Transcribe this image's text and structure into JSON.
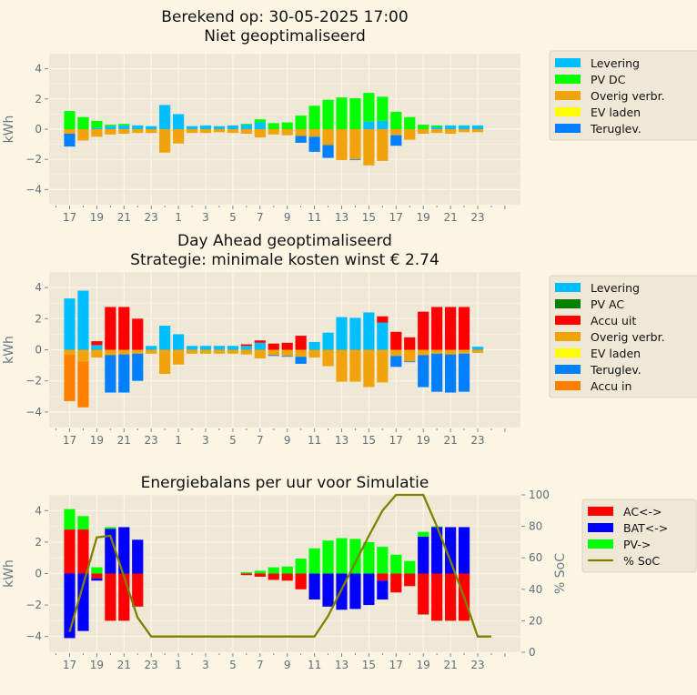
{
  "x_labels": [
    "17",
    "19",
    "21",
    "23",
    "1",
    "3",
    "5",
    "7",
    "9",
    "11",
    "13",
    "15",
    "17",
    "19",
    "21",
    "23"
  ],
  "chart_data": [
    {
      "type": "bar",
      "title": "Berekend op: 30-05-2025 17:00\nNiet geoptimaliseerd",
      "title_lines": [
        "Berekend op: 30-05-2025 17:00",
        "Niet geoptimaliseerd"
      ],
      "xlabel": "",
      "ylabel": "kWh",
      "ylim": [
        -5,
        5
      ],
      "yticks": [
        -4,
        -2,
        0,
        2,
        4
      ],
      "hours": [
        17,
        18,
        19,
        20,
        21,
        22,
        23,
        0,
        1,
        2,
        3,
        4,
        5,
        6,
        7,
        8,
        9,
        10,
        11,
        12,
        13,
        14,
        15,
        16,
        17,
        18,
        19,
        20,
        21,
        22,
        23
      ],
      "legend_position": "outside-right",
      "series": [
        {
          "name": "Levering",
          "color": "#00bfff",
          "stack": "pos",
          "values": [
            0,
            0,
            0.1,
            0.2,
            0.25,
            0.25,
            0.2,
            1.6,
            1.0,
            0.2,
            0.25,
            0.2,
            0.25,
            0.3,
            0.45,
            0,
            0,
            0,
            0,
            0,
            0,
            0,
            0.5,
            0.55,
            0,
            0,
            0,
            0.15,
            0.25,
            0.25,
            0.25
          ]
        },
        {
          "name": "PV DC",
          "color": "#00ff00",
          "stack": "pos",
          "values": [
            1.2,
            0.8,
            0.45,
            0.1,
            0.1,
            0,
            0,
            0,
            0,
            0,
            0,
            0,
            0,
            0.05,
            0.2,
            0.4,
            0.45,
            0.9,
            1.55,
            1.95,
            2.1,
            2.05,
            1.9,
            1.6,
            1.15,
            0.8,
            0.3,
            0.1,
            0,
            0,
            0
          ]
        },
        {
          "name": "Overig verbr.",
          "color": "#f0a30a",
          "stack": "neg",
          "values": [
            0.3,
            0.75,
            0.5,
            0.35,
            0.3,
            0.25,
            0.25,
            1.55,
            0.95,
            0.25,
            0.25,
            0.2,
            0.25,
            0.3,
            0.55,
            0.35,
            0.4,
            0.45,
            0.5,
            1.05,
            2.05,
            2.0,
            2.4,
            2.1,
            0.4,
            0.7,
            0.3,
            0.25,
            0.3,
            0.2,
            0.2
          ]
        },
        {
          "name": "EV laden",
          "color": "#ffff00",
          "stack": "neg",
          "values": [
            0,
            0,
            0,
            0,
            0,
            0,
            0,
            0,
            0,
            0,
            0,
            0,
            0,
            0,
            0,
            0,
            0,
            0,
            0,
            0,
            0,
            0,
            0,
            0,
            0,
            0,
            0,
            0,
            0,
            0,
            0
          ]
        },
        {
          "name": "Teruglev.",
          "color": "#0080ff",
          "stack": "neg",
          "values": [
            0.85,
            0,
            0,
            0,
            0,
            0,
            0,
            0,
            0,
            0,
            0,
            0,
            0,
            0,
            0,
            0,
            0,
            0.45,
            1.0,
            0.85,
            0,
            0.05,
            0,
            0,
            0.7,
            0,
            0,
            0,
            0,
            0,
            0
          ]
        }
      ]
    },
    {
      "type": "bar",
      "title": "Day Ahead geoptimaliseerd\nStrategie: minimale kosten winst € 2.74",
      "title_lines": [
        "Day Ahead geoptimaliseerd",
        "Strategie: minimale kosten winst € 2.74"
      ],
      "xlabel": "",
      "ylabel": "kWh",
      "ylim": [
        -5,
        5
      ],
      "yticks": [
        -4,
        -2,
        0,
        2,
        4
      ],
      "hours": [
        17,
        18,
        19,
        20,
        21,
        22,
        23,
        0,
        1,
        2,
        3,
        4,
        5,
        6,
        7,
        8,
        9,
        10,
        11,
        12,
        13,
        14,
        15,
        16,
        17,
        18,
        19,
        20,
        21,
        22,
        23
      ],
      "legend_position": "outside-right",
      "series": [
        {
          "name": "Levering",
          "color": "#00bfff",
          "stack": "pos",
          "values": [
            3.3,
            3.8,
            0.3,
            0,
            0,
            0,
            0.25,
            1.55,
            1.0,
            0.25,
            0.25,
            0.25,
            0.25,
            0.25,
            0.45,
            0,
            0,
            0,
            0.5,
            1.1,
            2.1,
            2.05,
            2.4,
            1.75,
            0,
            0,
            0,
            0,
            0,
            0,
            0.2
          ]
        },
        {
          "name": "PV AC",
          "color": "#008000",
          "stack": "pos",
          "values": [
            0,
            0,
            0,
            0,
            0,
            0,
            0,
            0,
            0,
            0,
            0,
            0,
            0,
            0,
            0,
            0,
            0,
            0,
            0,
            0,
            0,
            0,
            0,
            0,
            0,
            0,
            0,
            0,
            0,
            0,
            0
          ]
        },
        {
          "name": "Accu uit",
          "color": "#ff0000",
          "stack": "pos",
          "values": [
            0,
            0,
            0.25,
            2.75,
            2.75,
            2.0,
            0,
            0,
            0,
            0,
            0,
            0,
            0,
            0.1,
            0.15,
            0.4,
            0.45,
            0.9,
            0,
            0,
            0,
            0,
            0,
            0.4,
            1.15,
            0.8,
            2.45,
            2.75,
            2.75,
            2.75,
            0
          ]
        },
        {
          "name": "Overig verbr.",
          "color": "#f0a30a",
          "stack": "neg",
          "values": [
            0.3,
            0.75,
            0.5,
            0.35,
            0.3,
            0.25,
            0.25,
            1.55,
            0.95,
            0.25,
            0.25,
            0.25,
            0.25,
            0.3,
            0.55,
            0.35,
            0.4,
            0.45,
            0.5,
            1.05,
            2.05,
            2.05,
            2.4,
            2.1,
            0.4,
            0.75,
            0.35,
            0.25,
            0.3,
            0.25,
            0.2
          ]
        },
        {
          "name": "EV laden",
          "color": "#ffff00",
          "stack": "neg",
          "values": [
            0,
            0,
            0,
            0,
            0,
            0,
            0,
            0,
            0,
            0,
            0,
            0,
            0,
            0,
            0,
            0,
            0,
            0,
            0,
            0,
            0,
            0,
            0,
            0,
            0,
            0,
            0,
            0,
            0,
            0,
            0
          ]
        },
        {
          "name": "Teruglev.",
          "color": "#0080ff",
          "stack": "neg",
          "values": [
            0,
            0,
            0,
            2.4,
            2.45,
            1.75,
            0,
            0,
            0,
            0,
            0,
            0,
            0,
            0,
            0,
            0.05,
            0.05,
            0.45,
            0,
            0,
            0,
            0,
            0,
            0,
            0.7,
            0.05,
            2.05,
            2.45,
            2.45,
            2.45,
            0
          ]
        },
        {
          "name": "Accu in",
          "color": "#ff8000",
          "stack": "neg",
          "values": [
            3.0,
            2.95,
            0,
            0,
            0,
            0,
            0,
            0,
            0,
            0,
            0,
            0,
            0,
            0,
            0,
            0,
            0,
            0,
            0,
            0,
            0,
            0,
            0,
            0,
            0,
            0,
            0,
            0,
            0,
            0,
            0
          ]
        }
      ]
    },
    {
      "type": "bar",
      "title": "Energiebalans per uur voor Simulatie",
      "title_lines": [
        "Energiebalans per uur voor Simulatie"
      ],
      "xlabel": "",
      "ylabel": "kWh",
      "y2label": "% SoC",
      "ylim": [
        -5,
        5
      ],
      "y2lim": [
        0,
        100
      ],
      "yticks": [
        -4,
        -2,
        0,
        2,
        4
      ],
      "y2ticks": [
        0,
        20,
        40,
        60,
        80,
        100
      ],
      "hours": [
        17,
        18,
        19,
        20,
        21,
        22,
        23,
        0,
        1,
        2,
        3,
        4,
        5,
        6,
        7,
        8,
        9,
        10,
        11,
        12,
        13,
        14,
        15,
        16,
        17,
        18,
        19,
        20,
        21,
        22,
        23
      ],
      "legend_position": "outside-right",
      "bar_segments": [
        [
          {
            "s": "BAT",
            "v": -4.1
          },
          {
            "s": "AC",
            "v": 2.8
          },
          {
            "s": "PV",
            "v": 1.3
          }
        ],
        [
          {
            "s": "BAT",
            "v": -3.65
          },
          {
            "s": "AC",
            "v": 2.8
          },
          {
            "s": "PV",
            "v": 0.85
          }
        ],
        [
          {
            "s": "AC",
            "v": -0.3
          },
          {
            "s": "BAT",
            "v": -0.15
          },
          {
            "s": "PV",
            "v": 0.4
          }
        ],
        [
          {
            "s": "AC",
            "v": -3.0
          },
          {
            "s": "BAT",
            "v": 2.85
          },
          {
            "s": "PV",
            "v": 0.1
          }
        ],
        [
          {
            "s": "AC",
            "v": -3.0
          },
          {
            "s": "BAT",
            "v": 2.95
          }
        ],
        [
          {
            "s": "AC",
            "v": -2.1
          },
          {
            "s": "BAT",
            "v": 2.15
          }
        ],
        [],
        [],
        [],
        [],
        [],
        [],
        [],
        [
          {
            "s": "AC",
            "v": -0.1
          },
          {
            "s": "PV",
            "v": 0.08
          }
        ],
        [
          {
            "s": "AC",
            "v": -0.2
          },
          {
            "s": "PV",
            "v": 0.18
          }
        ],
        [
          {
            "s": "AC",
            "v": -0.4
          },
          {
            "s": "PV",
            "v": 0.4
          }
        ],
        [
          {
            "s": "AC",
            "v": -0.45
          },
          {
            "s": "PV",
            "v": 0.45
          }
        ],
        [
          {
            "s": "AC",
            "v": -1.0
          },
          {
            "s": "PV",
            "v": 0.95
          }
        ],
        [
          {
            "s": "BAT",
            "v": -1.65
          },
          {
            "s": "PV",
            "v": 1.6
          }
        ],
        [
          {
            "s": "BAT",
            "v": -2.1
          },
          {
            "s": "PV",
            "v": 2.1
          }
        ],
        [
          {
            "s": "BAT",
            "v": -2.3
          },
          {
            "s": "PV",
            "v": 2.25
          }
        ],
        [
          {
            "s": "BAT",
            "v": -2.25
          },
          {
            "s": "PV",
            "v": 2.2
          }
        ],
        [
          {
            "s": "BAT",
            "v": -2.0
          },
          {
            "s": "PV",
            "v": 2.0
          }
        ],
        [
          {
            "s": "AC",
            "v": -0.45
          },
          {
            "s": "BAT",
            "v": -1.2
          },
          {
            "s": "PV",
            "v": 1.7
          }
        ],
        [
          {
            "s": "AC",
            "v": -1.2
          },
          {
            "s": "PV",
            "v": 1.2
          }
        ],
        [
          {
            "s": "AC",
            "v": -0.8
          },
          {
            "s": "PV",
            "v": 0.8
          }
        ],
        [
          {
            "s": "AC",
            "v": -2.6
          },
          {
            "s": "BAT",
            "v": 2.35
          },
          {
            "s": "PV",
            "v": 0.3
          }
        ],
        [
          {
            "s": "AC",
            "v": -3.0
          },
          {
            "s": "BAT",
            "v": 2.95
          },
          {
            "s": "PV",
            "v": 0.05
          }
        ],
        [
          {
            "s": "AC",
            "v": -3.0
          },
          {
            "s": "BAT",
            "v": 2.95
          }
        ],
        [
          {
            "s": "AC",
            "v": -3.0
          },
          {
            "s": "BAT",
            "v": 2.95
          }
        ],
        []
      ],
      "series": [
        {
          "name": "AC<->",
          "key": "AC",
          "color": "#ff0000"
        },
        {
          "name": "BAT<->",
          "key": "BAT",
          "color": "#0000ff"
        },
        {
          "name": "PV->",
          "key": "PV",
          "color": "#00ff00"
        }
      ],
      "line": {
        "name": "% SoC",
        "color": "#808000",
        "x_index": [
          0,
          2,
          3,
          4,
          5,
          6,
          7,
          8,
          9,
          10,
          11,
          12,
          13,
          14,
          15,
          16,
          17,
          18,
          19,
          20,
          21,
          22,
          23,
          24,
          25,
          26,
          27,
          28,
          29,
          30,
          31
        ],
        "values": [
          13,
          73,
          74,
          48,
          22,
          10,
          10,
          10,
          10,
          10,
          10,
          10,
          10,
          10,
          10,
          10,
          10,
          10,
          23,
          40,
          57,
          74,
          90,
          100,
          100,
          100,
          80,
          58,
          35,
          10,
          10
        ]
      }
    }
  ]
}
